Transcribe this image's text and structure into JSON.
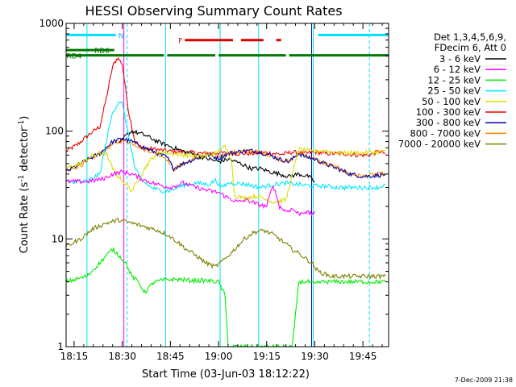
{
  "chart_data": {
    "type": "line",
    "title": "HESSI Observing Summary Count Rates",
    "xlabel": "Start Time (03-Jun-03 18:12:22)",
    "ylabel": "Count Rate (s",
    "ylabel_sup1": "-1",
    "ylabel_mid": " detector",
    "ylabel_sup2": "-1",
    "ylabel_end": ")",
    "y_scale": "log",
    "ylim": [
      1,
      1000
    ],
    "xlim_minutes": [
      -2.5,
      98
    ],
    "x_ticks": [
      {
        "label": "18:15",
        "t": 0
      },
      {
        "label": "18:30",
        "t": 15
      },
      {
        "label": "18:45",
        "t": 30
      },
      {
        "label": "19:00",
        "t": 45
      },
      {
        "label": "19:15",
        "t": 60
      },
      {
        "label": "19:30",
        "t": 75
      },
      {
        "label": "19:45",
        "t": 90
      }
    ],
    "y_ticks": [
      {
        "label": "1",
        "v": 1
      },
      {
        "label": "10",
        "v": 10
      },
      {
        "label": "100",
        "v": 100
      },
      {
        "label": "1000",
        "v": 1000
      }
    ],
    "legend": {
      "position": "right",
      "header1": "Det 1,3,4,5,6,9,",
      "header2": "FDecim 6, Att 0",
      "entries": [
        {
          "label": "3 - 6 keV",
          "color": "#000000"
        },
        {
          "label": "6 - 12 keV",
          "color": "#ff00ff"
        },
        {
          "label": "12 - 25 keV",
          "color": "#00ee00"
        },
        {
          "label": "25 - 50 keV",
          "color": "#00e8ff"
        },
        {
          "label": "50 - 100 keV",
          "color": "#dddd00"
        },
        {
          "label": "100 - 300 keV",
          "color": "#ee0000"
        },
        {
          "label": "300 - 800 keV",
          "color": "#0000aa"
        },
        {
          "label": "800 - 7000 keV",
          "color": "#ff8800"
        },
        {
          "label": "7000 - 20000 keV",
          "color": "#808000"
        }
      ]
    },
    "series": [
      {
        "color": "#ee0000",
        "points": [
          [
            -2.5,
            65
          ],
          [
            1,
            75
          ],
          [
            5,
            95
          ],
          [
            8,
            110
          ],
          [
            10,
            200
          ],
          [
            12,
            400
          ],
          [
            13.5,
            480
          ],
          [
            15,
            420
          ],
          [
            17,
            150
          ],
          [
            19,
            80
          ],
          [
            21,
            70
          ],
          [
            25,
            68
          ],
          [
            30,
            65
          ],
          [
            35,
            64
          ],
          [
            40,
            62
          ],
          [
            45,
            63
          ],
          [
            50,
            62
          ],
          [
            55,
            62
          ],
          [
            60,
            63
          ],
          [
            65,
            61
          ],
          [
            68,
            64
          ],
          [
            72,
            62
          ],
          [
            75,
            64
          ],
          [
            78,
            62
          ],
          [
            80,
            62
          ],
          [
            84,
            62
          ],
          [
            88,
            60
          ],
          [
            92,
            60
          ],
          [
            95,
            65
          ],
          [
            97,
            62
          ]
        ]
      },
      {
        "color": "#ff8800",
        "points": [
          [
            -2.5,
            42
          ],
          [
            3,
            50
          ],
          [
            8,
            62
          ],
          [
            12,
            75
          ],
          [
            15,
            82
          ],
          [
            18,
            78
          ],
          [
            22,
            68
          ],
          [
            26,
            62
          ],
          [
            29,
            55
          ],
          [
            31,
            44
          ],
          [
            34,
            50
          ],
          [
            38,
            56
          ],
          [
            42,
            62
          ],
          [
            45,
            58
          ],
          [
            48,
            62
          ],
          [
            52,
            65
          ],
          [
            55,
            65
          ],
          [
            58,
            64
          ],
          [
            61,
            60
          ],
          [
            64,
            55
          ],
          [
            67,
            52
          ],
          [
            70,
            63
          ],
          [
            72,
            60
          ],
          [
            75,
            55
          ],
          [
            78,
            50
          ],
          [
            82,
            46
          ],
          [
            86,
            40
          ],
          [
            90,
            38
          ],
          [
            95,
            40
          ],
          [
            97,
            40
          ]
        ]
      },
      {
        "color": "#0000aa",
        "points": [
          [
            -2.5,
            42
          ],
          [
            3,
            52
          ],
          [
            8,
            62
          ],
          [
            12,
            80
          ],
          [
            15,
            85
          ],
          [
            18,
            80
          ],
          [
            22,
            70
          ],
          [
            26,
            62
          ],
          [
            29,
            57
          ],
          [
            31,
            45
          ],
          [
            34,
            50
          ],
          [
            38,
            56
          ],
          [
            42,
            60
          ],
          [
            45,
            56
          ],
          [
            48,
            62
          ],
          [
            52,
            65
          ],
          [
            55,
            66
          ],
          [
            58,
            64
          ],
          [
            61,
            60
          ],
          [
            64,
            55
          ],
          [
            67,
            52
          ],
          [
            70,
            62
          ],
          [
            72,
            58
          ],
          [
            75,
            55
          ],
          [
            78,
            50
          ],
          [
            82,
            45
          ],
          [
            86,
            40
          ],
          [
            90,
            38
          ],
          [
            95,
            39
          ],
          [
            97,
            40
          ]
        ]
      },
      {
        "color": "#000000",
        "points": [
          [
            14,
            75
          ],
          [
            16,
            90
          ],
          [
            18,
            100
          ],
          [
            22,
            92
          ],
          [
            26,
            80
          ],
          [
            30,
            72
          ],
          [
            34,
            65
          ],
          [
            38,
            60
          ],
          [
            42,
            55
          ],
          [
            45,
            52
          ],
          [
            48,
            55
          ],
          [
            52,
            50
          ],
          [
            55,
            45
          ],
          [
            58,
            45
          ],
          [
            61,
            42
          ],
          [
            64,
            40
          ],
          [
            67,
            38
          ],
          [
            70,
            40
          ],
          [
            73,
            38
          ],
          [
            75,
            34
          ]
        ]
      },
      {
        "color": "#dddd00",
        "points": [
          [
            -2.5,
            45
          ],
          [
            2,
            50
          ],
          [
            6,
            60
          ],
          [
            10,
            62
          ],
          [
            12,
            45
          ],
          [
            13,
            40
          ],
          [
            15,
            35
          ],
          [
            17,
            30
          ],
          [
            18,
            28
          ],
          [
            20,
            35
          ],
          [
            22,
            45
          ],
          [
            24,
            55
          ],
          [
            27,
            65
          ],
          [
            30,
            62
          ],
          [
            35,
            60
          ],
          [
            40,
            58
          ],
          [
            44,
            62
          ],
          [
            47,
            72
          ],
          [
            49,
            55
          ],
          [
            50,
            25
          ],
          [
            53,
            24
          ],
          [
            57,
            25
          ],
          [
            62,
            22
          ],
          [
            66,
            23
          ],
          [
            70,
            68
          ],
          [
            74,
            65
          ],
          [
            78,
            66
          ],
          [
            82,
            63
          ],
          [
            86,
            63
          ],
          [
            90,
            63
          ],
          [
            95,
            64
          ],
          [
            97,
            66
          ]
        ]
      },
      {
        "color": "#00e8ff",
        "points": [
          [
            -2.5,
            34
          ],
          [
            4,
            34
          ],
          [
            8,
            40
          ],
          [
            10,
            80
          ],
          [
            12,
            150
          ],
          [
            14,
            190
          ],
          [
            15,
            180
          ],
          [
            17,
            90
          ],
          [
            19,
            45
          ],
          [
            21,
            35
          ],
          [
            24,
            30
          ],
          [
            27,
            28
          ],
          [
            30,
            28
          ],
          [
            32,
            30
          ],
          [
            35,
            32
          ],
          [
            38,
            33
          ],
          [
            42,
            32
          ],
          [
            44,
            35
          ],
          [
            46,
            30
          ],
          [
            48,
            33
          ],
          [
            50,
            33
          ],
          [
            54,
            32
          ],
          [
            58,
            30
          ],
          [
            62,
            32
          ],
          [
            66,
            33
          ],
          [
            70,
            32
          ],
          [
            74,
            31
          ],
          [
            78,
            31
          ],
          [
            82,
            30
          ],
          [
            86,
            30
          ],
          [
            90,
            30
          ],
          [
            95,
            30
          ],
          [
            97,
            32
          ]
        ]
      },
      {
        "color": "#ff00ff",
        "points": [
          [
            -2.5,
            34
          ],
          [
            4,
            34
          ],
          [
            9,
            36
          ],
          [
            12,
            40
          ],
          [
            15,
            42
          ],
          [
            18,
            40
          ],
          [
            22,
            35
          ],
          [
            26,
            32
          ],
          [
            30,
            30
          ],
          [
            34,
            33
          ],
          [
            38,
            30
          ],
          [
            42,
            28
          ],
          [
            45,
            27
          ],
          [
            48,
            24
          ],
          [
            51,
            22
          ],
          [
            54,
            23
          ],
          [
            57,
            21
          ],
          [
            60,
            20
          ],
          [
            62,
            32
          ],
          [
            64,
            20
          ],
          [
            66,
            18
          ],
          [
            68,
            19
          ],
          [
            70,
            17
          ],
          [
            72,
            18
          ],
          [
            74,
            17
          ],
          [
            75,
            18
          ]
        ]
      },
      {
        "color": "#808000",
        "points": [
          [
            -2.5,
            8.5
          ],
          [
            2,
            10
          ],
          [
            6,
            12.5
          ],
          [
            10,
            14
          ],
          [
            14,
            15
          ],
          [
            18,
            14
          ],
          [
            22,
            13
          ],
          [
            26,
            12
          ],
          [
            29,
            11
          ],
          [
            32,
            9.5
          ],
          [
            35,
            8
          ],
          [
            38,
            7
          ],
          [
            41,
            6
          ],
          [
            44,
            5.5
          ],
          [
            47,
            6.5
          ],
          [
            50,
            8
          ],
          [
            53,
            10
          ],
          [
            56,
            11.5
          ],
          [
            59,
            12
          ],
          [
            62,
            11
          ],
          [
            65,
            9.5
          ],
          [
            68,
            8
          ],
          [
            71,
            7
          ],
          [
            74,
            6
          ],
          [
            76,
            5
          ],
          [
            80,
            4.5
          ],
          [
            84,
            4.5
          ],
          [
            88,
            4.5
          ],
          [
            92,
            4.5
          ],
          [
            97,
            4.5
          ]
        ]
      },
      {
        "color": "#00ee00",
        "points": [
          [
            -2.5,
            4
          ],
          [
            4,
            4.5
          ],
          [
            8,
            6
          ],
          [
            10,
            7
          ],
          [
            12,
            8
          ],
          [
            14,
            7
          ],
          [
            16,
            6
          ],
          [
            18,
            4.5
          ],
          [
            20,
            4
          ],
          [
            22,
            3.2
          ],
          [
            25,
            4
          ],
          [
            29,
            4.2
          ],
          [
            33,
            4.2
          ],
          [
            37,
            4.1
          ],
          [
            41,
            4.1
          ],
          [
            45,
            4
          ],
          [
            47,
            3
          ],
          [
            48,
            1
          ],
          [
            50,
            1
          ],
          [
            54,
            1
          ],
          [
            58,
            1
          ],
          [
            62,
            1
          ],
          [
            65,
            1
          ],
          [
            68,
            1
          ],
          [
            70,
            4
          ],
          [
            73,
            4
          ],
          [
            75,
            3.8
          ],
          [
            77,
            4
          ],
          [
            80,
            4
          ],
          [
            84,
            4
          ],
          [
            88,
            4
          ],
          [
            92,
            4
          ],
          [
            97,
            4
          ]
        ]
      }
    ],
    "flag_labels": [
      "N",
      "F",
      "RD0",
      "RD4"
    ],
    "attenuator_bars": [
      {
        "flag": "N",
        "color": "#00e0ff",
        "row_value": 780,
        "segments": [
          [
            -2.5,
            13
          ]
        ]
      },
      {
        "flag": "N",
        "color": "#00e0ff",
        "row_value": 780,
        "segments": [
          [
            76,
            98
          ]
        ]
      },
      {
        "flag": "F",
        "color": "#dd0000",
        "row_value": 700,
        "segments": [
          [
            34.5,
            49.5
          ],
          [
            52,
            59
          ],
          [
            63,
            64.5
          ]
        ]
      },
      {
        "flag": "RD0",
        "color": "#007700",
        "row_value": 565,
        "segments": [
          [
            -2.5,
            12.5
          ]
        ]
      },
      {
        "flag": "RD4",
        "color": "#007700",
        "row_value": 505,
        "segments": [
          [
            -2.5,
            28
          ],
          [
            29,
            44
          ],
          [
            45,
            66
          ],
          [
            67,
            98
          ]
        ]
      }
    ],
    "vertical_markers": [
      {
        "t": 4,
        "color": "#00e0ff",
        "style": "solid"
      },
      {
        "t": 28.5,
        "color": "#00e0ff",
        "style": "solid"
      },
      {
        "t": 45.5,
        "color": "#00e0ff",
        "style": "solid"
      },
      {
        "t": 57.5,
        "color": "#00e0ff",
        "style": "solid"
      },
      {
        "t": 74.5,
        "color": "#00e0ff",
        "style": "solid"
      },
      {
        "t": 16.5,
        "color": "#00e0ff",
        "style": "dashed"
      },
      {
        "t": 92,
        "color": "#00e0ff",
        "style": "dashed"
      },
      {
        "t": 15.5,
        "color": "#ff00ff",
        "style": "solid"
      },
      {
        "t": 74,
        "color": "#0000aa",
        "style": "solid"
      }
    ]
  },
  "footer": {
    "timestamp": "7-Dec-2009 21:38"
  }
}
